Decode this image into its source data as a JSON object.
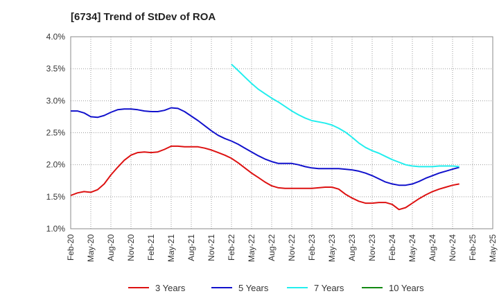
{
  "chart_data": {
    "type": "line",
    "title": "[6734]  Trend of StDev of ROA",
    "xlabel": "",
    "ylabel": "",
    "ylim": [
      1.0,
      4.0
    ],
    "y_ticks": [
      "1.0%",
      "1.5%",
      "2.0%",
      "2.5%",
      "3.0%",
      "3.5%",
      "4.0%"
    ],
    "y_tick_values": [
      1.0,
      1.5,
      2.0,
      2.5,
      3.0,
      3.5,
      4.0
    ],
    "x_ticks": [
      "Feb-20",
      "May-20",
      "Aug-20",
      "Nov-20",
      "Feb-21",
      "May-21",
      "Aug-21",
      "Nov-21",
      "Feb-22",
      "May-22",
      "Aug-22",
      "Nov-22",
      "Feb-23",
      "May-23",
      "Aug-23",
      "Nov-23",
      "Feb-24",
      "May-24",
      "Aug-24",
      "Nov-24",
      "Feb-25",
      "May-25"
    ],
    "grid": true,
    "legend_position": "bottom",
    "series": [
      {
        "name": "3 Years",
        "color": "#dd1111",
        "values": [
          1.52,
          1.56,
          1.58,
          1.57,
          1.61,
          1.7,
          1.84,
          1.96,
          2.07,
          2.15,
          2.19,
          2.2,
          2.19,
          2.2,
          2.24,
          2.29,
          2.29,
          2.28,
          2.28,
          2.28,
          2.26,
          2.23,
          2.19,
          2.15,
          2.1,
          2.03,
          1.95,
          1.87,
          1.8,
          1.73,
          1.67,
          1.64,
          1.63,
          1.63,
          1.63,
          1.63,
          1.63,
          1.64,
          1.65,
          1.65,
          1.62,
          1.54,
          1.48,
          1.43,
          1.4,
          1.4,
          1.41,
          1.41,
          1.38,
          1.3,
          1.33,
          1.4,
          1.47,
          1.53,
          1.58,
          1.62,
          1.65,
          1.68,
          1.7
        ]
      },
      {
        "name": "5 Years",
        "color": "#1111cc",
        "values": [
          2.84,
          2.84,
          2.81,
          2.75,
          2.74,
          2.77,
          2.82,
          2.86,
          2.87,
          2.87,
          2.86,
          2.84,
          2.83,
          2.83,
          2.85,
          2.89,
          2.88,
          2.83,
          2.76,
          2.69,
          2.61,
          2.53,
          2.46,
          2.41,
          2.37,
          2.32,
          2.26,
          2.2,
          2.14,
          2.09,
          2.05,
          2.02,
          2.02,
          2.02,
          2.0,
          1.97,
          1.95,
          1.94,
          1.94,
          1.94,
          1.94,
          1.93,
          1.92,
          1.9,
          1.87,
          1.83,
          1.78,
          1.73,
          1.7,
          1.68,
          1.68,
          1.7,
          1.74,
          1.79,
          1.83,
          1.87,
          1.9,
          1.93,
          1.96
        ]
      },
      {
        "name": "7 Years",
        "color": "#22eeee",
        "values": [
          null,
          null,
          null,
          null,
          null,
          null,
          null,
          null,
          null,
          null,
          null,
          null,
          null,
          null,
          null,
          null,
          null,
          null,
          null,
          null,
          null,
          null,
          null,
          null,
          3.57,
          3.47,
          3.37,
          3.27,
          3.18,
          3.11,
          3.04,
          2.98,
          2.91,
          2.84,
          2.78,
          2.73,
          2.69,
          2.67,
          2.65,
          2.62,
          2.57,
          2.51,
          2.43,
          2.34,
          2.27,
          2.22,
          2.18,
          2.13,
          2.08,
          2.04,
          2.0,
          1.98,
          1.97,
          1.97,
          1.97,
          1.98,
          1.98,
          1.98,
          1.97
        ]
      },
      {
        "name": "10 Years",
        "color": "#118811",
        "values": []
      }
    ]
  }
}
